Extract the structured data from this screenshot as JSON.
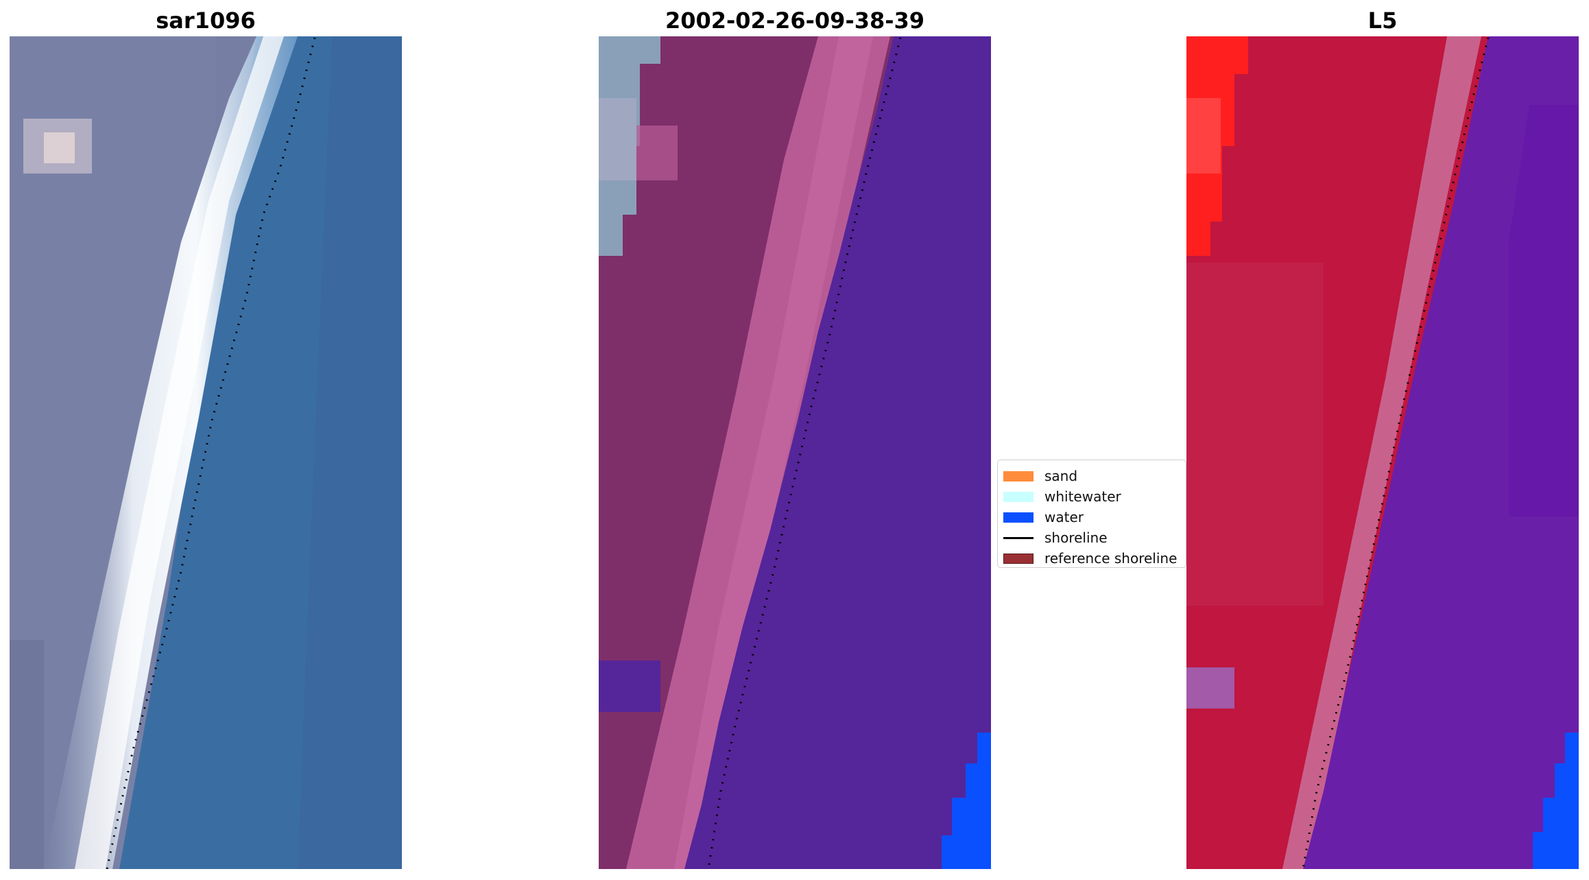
{
  "panels": [
    {
      "title": "sar1096"
    },
    {
      "title": "2002-02-26-09-38-39"
    },
    {
      "title": "L5"
    }
  ],
  "legend": {
    "items": [
      {
        "label": "sand",
        "color": "#ff8c3c",
        "kind": "patch"
      },
      {
        "label": "whitewater",
        "color": "#c8ffff",
        "kind": "patch"
      },
      {
        "label": "water",
        "color": "#0a50ff",
        "kind": "patch"
      },
      {
        "label": "shoreline",
        "color": "#000000",
        "kind": "line"
      },
      {
        "label": "reference shoreline",
        "color": "#9a2f33",
        "kind": "patch"
      }
    ]
  },
  "colors": {
    "rgb_land": "#767ea3",
    "rgb_sea": "#3a6ea3",
    "rgb_whitewater": "#f2f6fa",
    "class_land": "#7e2f6a",
    "class_beach": "#b85b95",
    "class_sea": "#55259a",
    "class_water": "#0a50ff",
    "class_gray": "#8aa0b8",
    "fc_land": "#c0163f",
    "fc_sea": "#6a1fa8",
    "fc_hot": "#ff1f1f"
  }
}
